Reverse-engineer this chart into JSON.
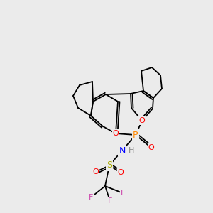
{
  "bg_color": "#ebebeb",
  "atom_colors": {
    "C": "#000000",
    "F": "#cc44aa",
    "S": "#aaaa00",
    "O": "#ff0000",
    "N": "#0000ff",
    "P": "#ff8800",
    "H": "#888888"
  },
  "font_size": 9,
  "line_width": 1.3
}
